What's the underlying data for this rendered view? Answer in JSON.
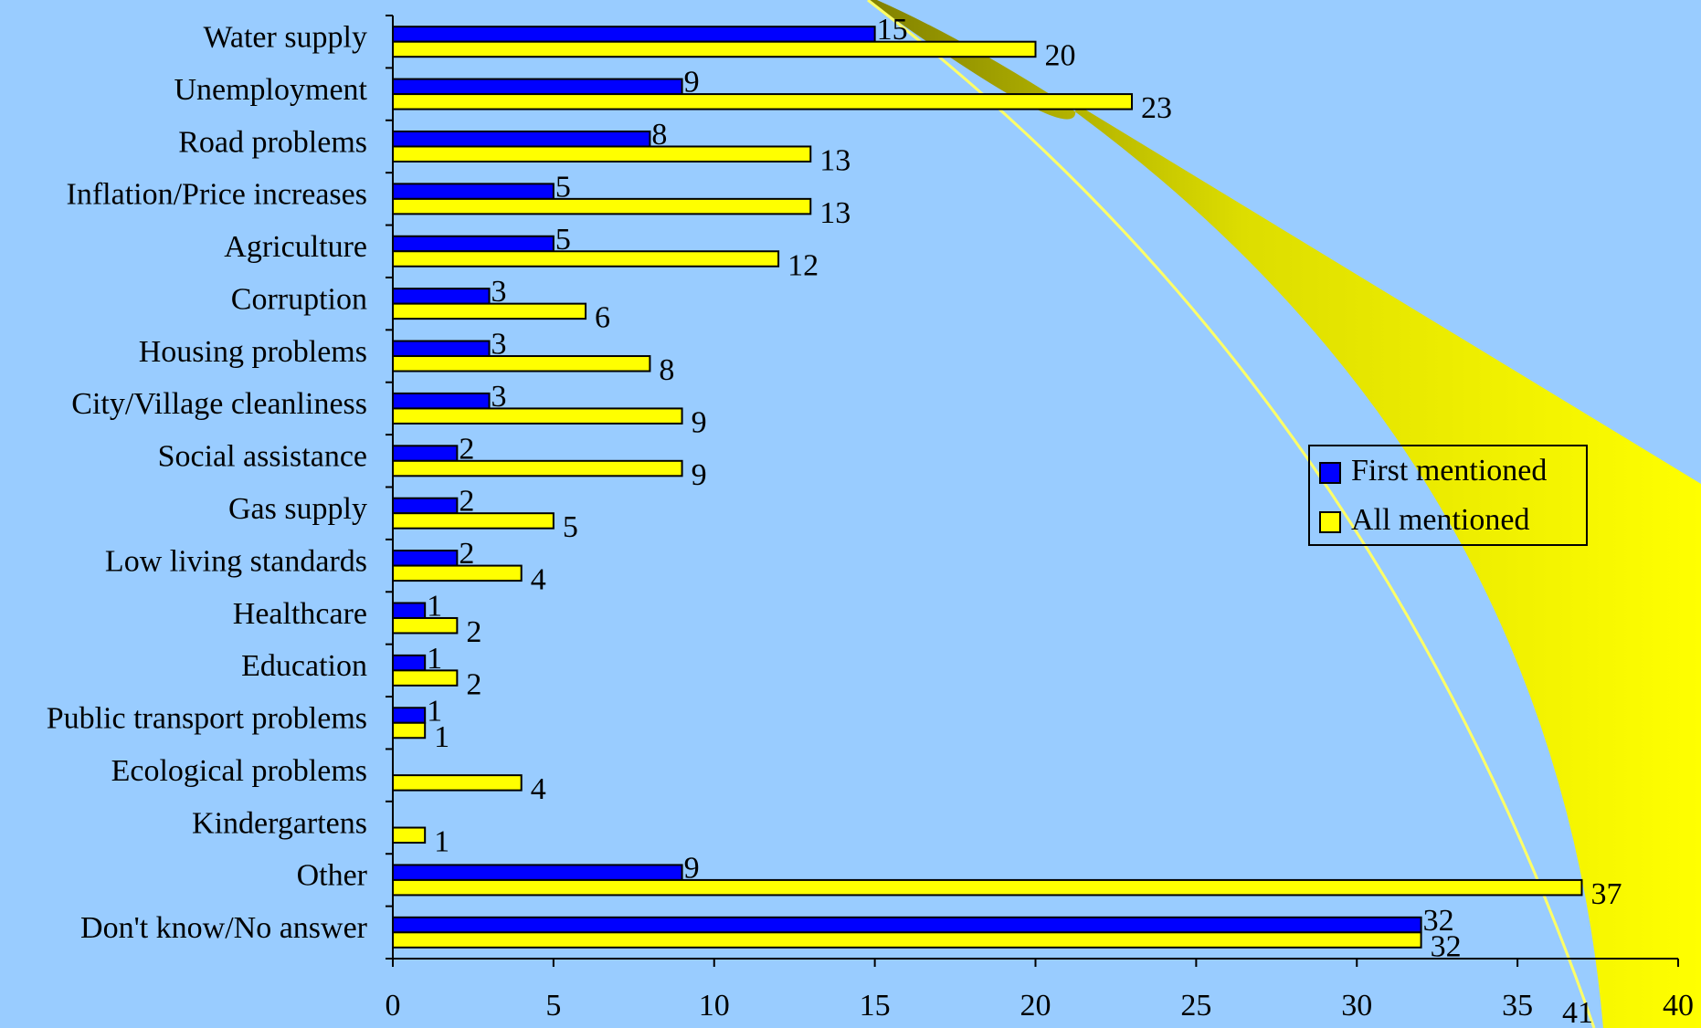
{
  "chart_data": {
    "type": "hbar",
    "categories": [
      "Water supply",
      "Unemployment",
      "Road problems",
      "Inflation/Price increases",
      "Agriculture",
      "Corruption",
      "Housing problems",
      "City/Village cleanliness",
      "Social assistance",
      "Gas supply",
      "Low living standards",
      "Healthcare",
      "Education",
      "Public transport problems",
      "Ecological problems",
      "Kindergartens",
      "Other",
      "Don't know/No answer"
    ],
    "series": [
      {
        "name": "First mentioned",
        "color": "#0000ff",
        "values": [
          15,
          9,
          8,
          5,
          5,
          3,
          3,
          3,
          2,
          2,
          2,
          1,
          1,
          1,
          null,
          null,
          9,
          32
        ]
      },
      {
        "name": "All mentioned",
        "color": "#ffff00",
        "values": [
          20,
          23,
          13,
          13,
          12,
          6,
          8,
          9,
          9,
          5,
          4,
          2,
          2,
          1,
          4,
          1,
          37,
          32
        ]
      }
    ],
    "xlim": [
      0,
      40
    ],
    "xticks": [
      0,
      5,
      10,
      15,
      20,
      25,
      30,
      35,
      40
    ],
    "legend": "right",
    "background": "#99ccff",
    "annotation": "41"
  }
}
